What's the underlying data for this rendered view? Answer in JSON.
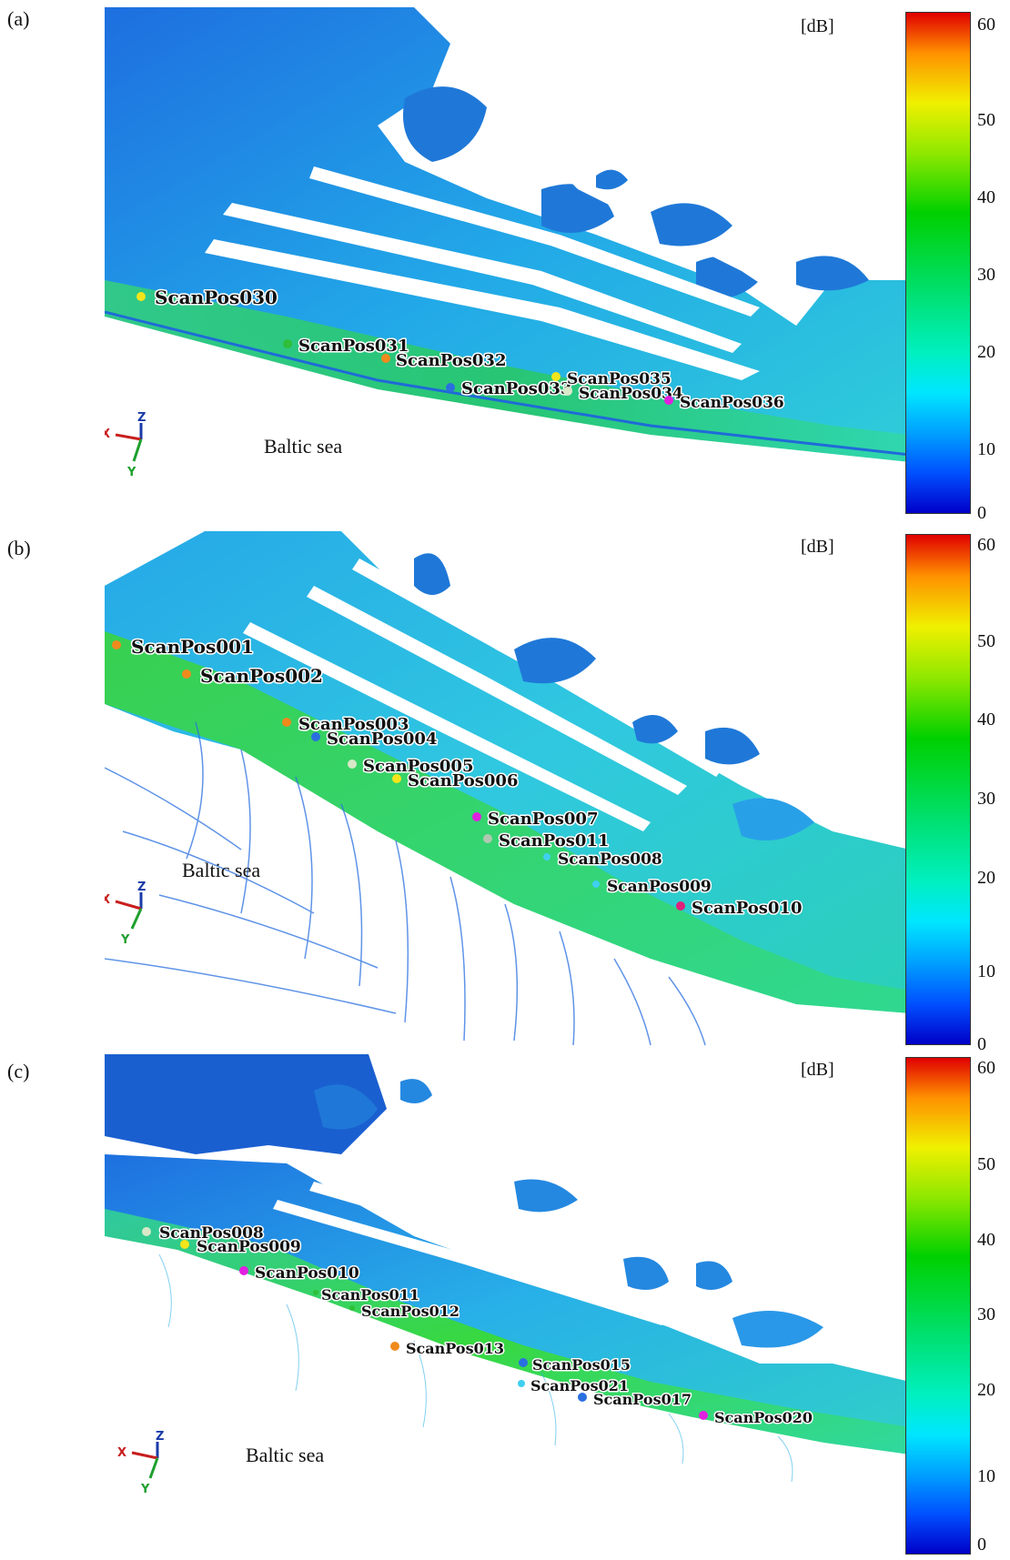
{
  "panels": [
    {
      "label": "(a)",
      "sea_label": "Baltic sea",
      "axes": {
        "x": "X",
        "y": "Y",
        "z": "Z"
      },
      "colorbar": {
        "unit": "[dB]",
        "ticks": [
          "60",
          "50",
          "40",
          "30",
          "20",
          "10",
          "0"
        ]
      },
      "scan_positions": [
        {
          "name": "ScanPos030",
          "color": "#f5e51b"
        },
        {
          "name": "ScanPos031",
          "color": "#2fbf3a"
        },
        {
          "name": "ScanPos032",
          "color": "#f08a1c"
        },
        {
          "name": "ScanPos033",
          "color": "#2a6fe0"
        },
        {
          "name": "ScanPos035",
          "color": "#f5e51b"
        },
        {
          "name": "ScanPos034",
          "color": "#d8e8c8"
        },
        {
          "name": "ScanPos036",
          "color": "#e020e0"
        }
      ]
    },
    {
      "label": "(b)",
      "sea_label": "Baltic sea",
      "axes": {
        "x": "X",
        "y": "Y",
        "z": "Z"
      },
      "colorbar": {
        "unit": "[dB]",
        "ticks": [
          "60",
          "50",
          "40",
          "30",
          "20",
          "10",
          "0"
        ]
      },
      "scan_positions": [
        {
          "name": "ScanPos001",
          "color": "#f08a1c"
        },
        {
          "name": "ScanPos002",
          "color": "#f08a1c"
        },
        {
          "name": "ScanPos003",
          "color": "#f08a1c"
        },
        {
          "name": "ScanPos004",
          "color": "#2a6fe0"
        },
        {
          "name": "ScanPos005",
          "color": "#d8e8c8"
        },
        {
          "name": "ScanPos006",
          "color": "#f5e51b"
        },
        {
          "name": "ScanPos007",
          "color": "#e020e0"
        },
        {
          "name": "ScanPos011",
          "color": "#b0c8b0"
        },
        {
          "name": "ScanPos008",
          "color": "#3fd0f0"
        },
        {
          "name": "ScanPos009",
          "color": "#3fd0f0"
        },
        {
          "name": "ScanPos010",
          "color": "#e0207a"
        }
      ]
    },
    {
      "label": "(c)",
      "sea_label": "Baltic sea",
      "axes": {
        "x": "X",
        "y": "Y",
        "z": "Z"
      },
      "colorbar": {
        "unit": "[dB]",
        "ticks": [
          "60",
          "50",
          "40",
          "30",
          "20",
          "10",
          "0"
        ]
      },
      "scan_positions": [
        {
          "name": "ScanPos008",
          "color": "#d8e8c8"
        },
        {
          "name": "ScanPos009",
          "color": "#f5e51b"
        },
        {
          "name": "ScanPos010",
          "color": "#e020e0"
        },
        {
          "name": "ScanPos011",
          "color": "#2fbf3a"
        },
        {
          "name": "ScanPos012",
          "color": "#2fbf3a"
        },
        {
          "name": "ScanPos013",
          "color": "#f08a1c"
        },
        {
          "name": "ScanPos015",
          "color": "#2a6fe0"
        },
        {
          "name": "ScanPos021",
          "color": "#3fd0f0"
        },
        {
          "name": "ScanPos017",
          "color": "#2a6fe0"
        },
        {
          "name": "ScanPos020",
          "color": "#e020e0"
        }
      ]
    }
  ]
}
